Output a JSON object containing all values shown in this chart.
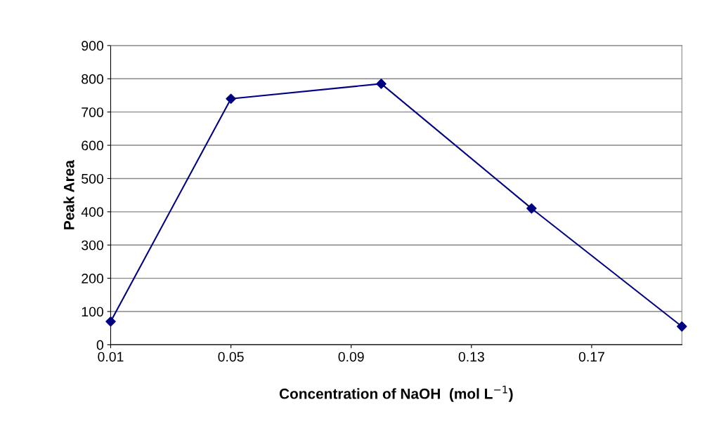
{
  "chart_data": {
    "type": "line",
    "xlabel": "Concentration of NaOH  (mol L$^{−1}$)",
    "ylabel": "Peak Area",
    "x": [
      0.01,
      0.05,
      0.1,
      0.15,
      0.2
    ],
    "series": [
      {
        "color": "#000080",
        "values": [
          70,
          740,
          785,
          410,
          55
        ]
      }
    ],
    "xlim": [
      0.01,
      0.2
    ],
    "xticks": [
      0.01,
      0.05,
      0.09,
      0.13,
      0.17
    ],
    "ylim": [
      0,
      900
    ],
    "yticks": [
      0,
      100,
      200,
      300,
      400,
      500,
      600,
      700,
      800,
      900
    ],
    "grid": "y",
    "marker": "diamond",
    "line_style": "solid",
    "legend": false
  }
}
